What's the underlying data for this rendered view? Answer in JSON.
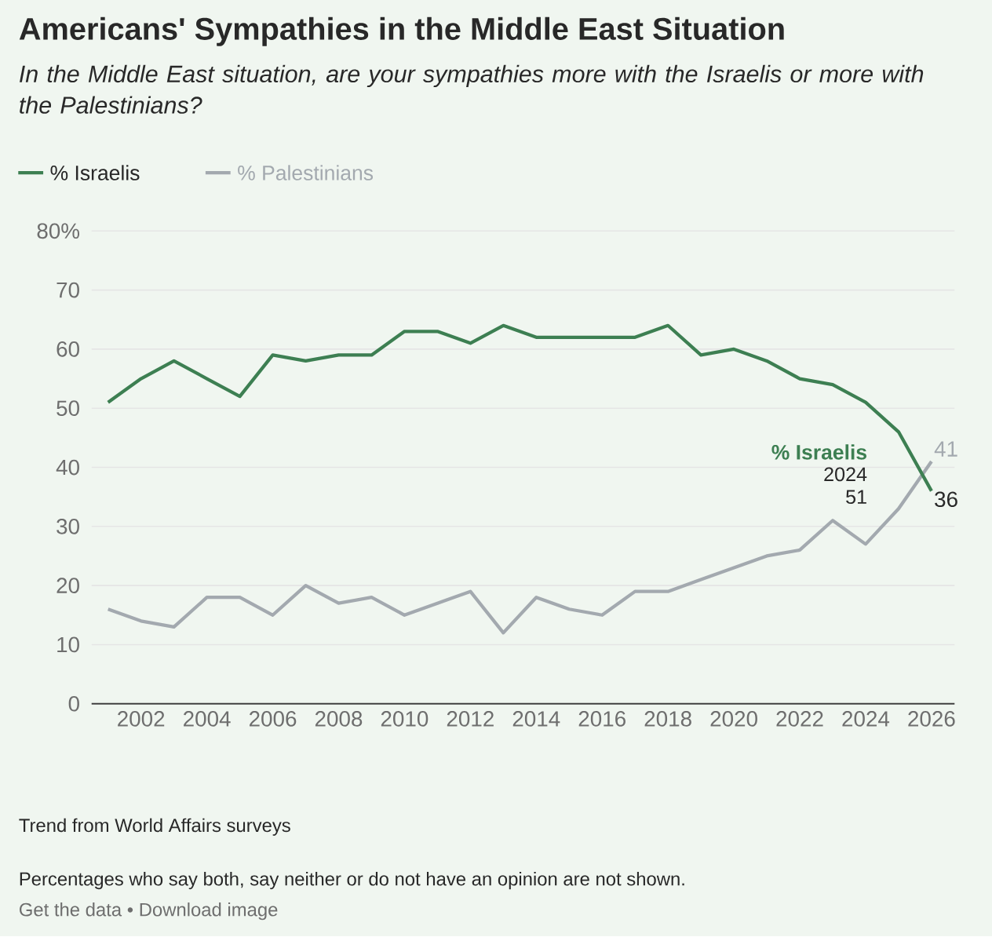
{
  "chart_data": {
    "type": "line",
    "title": "Americans' Sympathies in the Middle East Situation",
    "subtitle": "In the Middle East situation, are your sympathies more with the Israelis or more with the Palestinians?",
    "x": [
      2001,
      2002,
      2003,
      2004,
      2005,
      2006,
      2007,
      2008,
      2009,
      2010,
      2011,
      2012,
      2013,
      2014,
      2015,
      2016,
      2017,
      2018,
      2019,
      2020,
      2021,
      2022,
      2023,
      2024,
      2025,
      2026
    ],
    "series": [
      {
        "name": "% Israelis",
        "color": "#3d7f52",
        "values": [
          51,
          55,
          58,
          55,
          52,
          59,
          58,
          59,
          59,
          63,
          63,
          61,
          64,
          62,
          62,
          62,
          62,
          64,
          59,
          60,
          58,
          55,
          54,
          51,
          46,
          36
        ],
        "value_labels": [
          null,
          null,
          null,
          null,
          null,
          null,
          null,
          null,
          null,
          null,
          null,
          null,
          null,
          null,
          null,
          null,
          null,
          null,
          null,
          null,
          null,
          null,
          null,
          null,
          null,
          "36"
        ]
      },
      {
        "name": "% Palestinians",
        "color": "#a3a9af",
        "values": [
          16,
          14,
          13,
          18,
          18,
          15,
          20,
          17,
          18,
          15,
          17,
          19,
          12,
          18,
          16,
          15,
          19,
          19,
          21,
          23,
          25,
          26,
          31,
          27,
          33,
          41
        ],
        "value_labels": [
          null,
          null,
          null,
          null,
          null,
          null,
          null,
          null,
          null,
          null,
          null,
          null,
          null,
          null,
          null,
          null,
          null,
          null,
          null,
          null,
          null,
          null,
          null,
          null,
          null,
          "41"
        ]
      }
    ],
    "xlim": [
      2000.5,
      2026.7
    ],
    "xticks": [
      2002,
      2004,
      2006,
      2008,
      2010,
      2012,
      2014,
      2016,
      2018,
      2020,
      2022,
      2024,
      2026
    ],
    "ylim": [
      0,
      80
    ],
    "yticks": [
      0,
      10,
      20,
      30,
      40,
      50,
      60,
      70,
      {
        "value": 80,
        "label": "80%"
      }
    ],
    "grid": "y",
    "legend": "top left",
    "marker": "none",
    "line_style": "solid",
    "annotations": [
      "Trend from World Affairs surveys",
      "Percentages who say both, say neither or do not have an opinion are not shown.",
      "Get the data • Download image",
      {
        "text": "% Israelis",
        "x": 2024,
        "y": 51
      },
      "2024",
      "51"
    ]
  }
}
